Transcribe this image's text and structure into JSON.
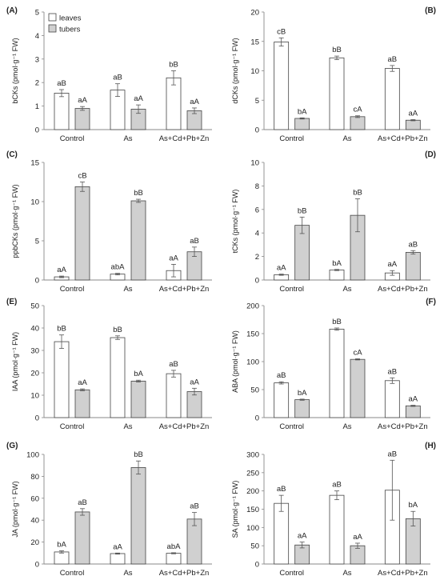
{
  "chart_data": [
    {
      "type": "bar",
      "panel": "(A)",
      "ylabel": "bCKs (pmol·g⁻¹ FW)",
      "ylim": [
        0,
        5
      ],
      "yticks": [
        0,
        1,
        2,
        3,
        4,
        5
      ],
      "categories": [
        "Control",
        "As",
        "As+Cd+Pb+Zn"
      ],
      "legend": true,
      "series": [
        {
          "name": "leaves",
          "values": [
            1.55,
            1.68,
            2.2
          ],
          "errors": [
            0.15,
            0.27,
            0.3
          ],
          "labels": [
            "aB",
            "aB",
            "bB"
          ]
        },
        {
          "name": "tubers",
          "values": [
            0.9,
            0.87,
            0.8
          ],
          "errors": [
            0.08,
            0.18,
            0.12
          ],
          "labels": [
            "aA",
            "aA",
            "aA"
          ]
        }
      ]
    },
    {
      "type": "bar",
      "panel": "(B)",
      "ylabel": "dCKs (pmol·g⁻¹ FW)",
      "ylim": [
        0,
        20
      ],
      "yticks": [
        0,
        5,
        10,
        15,
        20
      ],
      "categories": [
        "Control",
        "As",
        "As+Cd+Pb+Zn"
      ],
      "series": [
        {
          "values": [
            14.9,
            12.2,
            10.4
          ],
          "errors": [
            0.7,
            0.3,
            0.5
          ],
          "labels": [
            "cB",
            "bB",
            "aB"
          ]
        },
        {
          "values": [
            1.9,
            2.2,
            1.6
          ],
          "errors": [
            0.1,
            0.15,
            0.1
          ],
          "labels": [
            "bA",
            "cA",
            "aA"
          ]
        }
      ]
    },
    {
      "type": "bar",
      "panel": "(C)",
      "ylabel": "ppbCKs (pmol·g⁻¹ FW)",
      "ylim": [
        0,
        15
      ],
      "yticks": [
        0,
        5,
        10,
        15
      ],
      "categories": [
        "Control",
        "As",
        "As+Cd+Pb+Zn"
      ],
      "series": [
        {
          "values": [
            0.4,
            0.75,
            1.2
          ],
          "errors": [
            0.1,
            0.1,
            0.8
          ],
          "labels": [
            "aA",
            "abA",
            "aA"
          ]
        },
        {
          "values": [
            11.9,
            10.1,
            3.6
          ],
          "errors": [
            0.6,
            0.2,
            0.6
          ],
          "labels": [
            "cB",
            "bB",
            "aB"
          ]
        }
      ]
    },
    {
      "type": "bar",
      "panel": "(D)",
      "ylabel": "tCKs (pmol·g⁻¹ FW)",
      "ylim": [
        0,
        10
      ],
      "yticks": [
        0,
        2,
        4,
        6,
        8,
        10
      ],
      "categories": [
        "Control",
        "As",
        "As+Cd+Pb+Zn"
      ],
      "series": [
        {
          "values": [
            0.45,
            0.85,
            0.6
          ],
          "errors": [
            0.05,
            0.05,
            0.2
          ],
          "labels": [
            "aA",
            "bA",
            "aA"
          ]
        },
        {
          "values": [
            4.65,
            5.5,
            2.35
          ],
          "errors": [
            0.7,
            1.4,
            0.15
          ],
          "labels": [
            "bB",
            "bB",
            "aB"
          ]
        }
      ]
    },
    {
      "type": "bar",
      "panel": "(E)",
      "ylabel": "IAA (pmol·g⁻¹ FW)",
      "ylim": [
        0,
        50
      ],
      "yticks": [
        0,
        10,
        20,
        30,
        40,
        50
      ],
      "categories": [
        "Control",
        "As",
        "As+Cd+Pb+Zn"
      ],
      "series": [
        {
          "values": [
            33.9,
            35.7,
            19.6
          ],
          "errors": [
            3.0,
            0.8,
            1.5
          ],
          "labels": [
            "bB",
            "bB",
            "aB"
          ]
        },
        {
          "values": [
            12.4,
            16.3,
            11.6
          ],
          "errors": [
            0.4,
            0.4,
            1.5
          ],
          "labels": [
            "aA",
            "bA",
            "aA"
          ]
        }
      ]
    },
    {
      "type": "bar",
      "panel": "(F)",
      "ylabel": "ABA (pmol·g⁻¹ FW)",
      "ylim": [
        0,
        200
      ],
      "yticks": [
        0,
        50,
        100,
        150,
        200
      ],
      "categories": [
        "Control",
        "As",
        "As+Cd+Pb+Zn"
      ],
      "series": [
        {
          "values": [
            62,
            158,
            66
          ],
          "errors": [
            2,
            2,
            5
          ],
          "labels": [
            "aB",
            "bB",
            "aB"
          ]
        },
        {
          "values": [
            32,
            104,
            21
          ],
          "errors": [
            1,
            1,
            1
          ],
          "labels": [
            "bA",
            "cA",
            "aA"
          ]
        }
      ]
    },
    {
      "type": "bar",
      "panel": "(G)",
      "ylabel": "JA (pmol·g⁻¹ FW)",
      "ylim": [
        0,
        100
      ],
      "yticks": [
        0,
        20,
        40,
        60,
        80,
        100
      ],
      "categories": [
        "Control",
        "As",
        "As+Cd+Pb+Zn"
      ],
      "series": [
        {
          "values": [
            11,
            9.5,
            9.8
          ],
          "errors": [
            1,
            0.5,
            0.5
          ],
          "labels": [
            "bA",
            "aA",
            "abA"
          ]
        },
        {
          "values": [
            47.5,
            88,
            41
          ],
          "errors": [
            3,
            6,
            6
          ],
          "labels": [
            "aB",
            "bB",
            "aB"
          ]
        }
      ]
    },
    {
      "type": "bar",
      "panel": "(H)",
      "ylabel": "SA (pmol·g⁻¹ FW)",
      "ylim": [
        0,
        300
      ],
      "yticks": [
        0,
        50,
        100,
        150,
        200,
        250,
        300
      ],
      "categories": [
        "Control",
        "As",
        "As+Cd+Pb+Zn"
      ],
      "series": [
        {
          "values": [
            166,
            188,
            202
          ],
          "errors": [
            22,
            12,
            82
          ],
          "labels": [
            "aB",
            "aB",
            "aB"
          ]
        },
        {
          "values": [
            52,
            50,
            124
          ],
          "errors": [
            8,
            7,
            20
          ],
          "labels": [
            "aA",
            "aA",
            "bA"
          ]
        }
      ]
    }
  ]
}
